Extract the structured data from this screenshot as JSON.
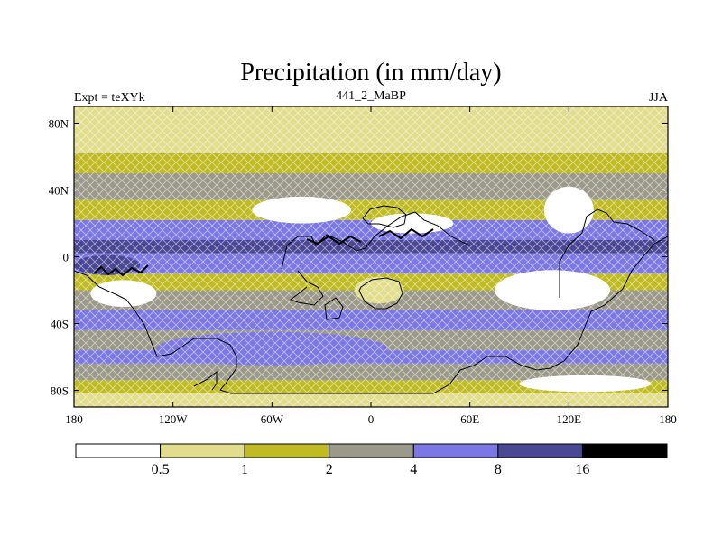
{
  "title": "Precipitation (in mm/day)",
  "left_label": "Expt = teXYk",
  "center_label": "441_2_MaBP",
  "right_label": "JJA",
  "chart_data": {
    "type": "heatmap",
    "title": "Precipitation (in mm/day)",
    "subtitle": "441_2_MaBP",
    "annotations": [
      "Expt = teXYk",
      "JJA"
    ],
    "units": "mm/day",
    "x_ticks": [
      "180",
      "120W",
      "60W",
      "0",
      "60E",
      "120E",
      "180"
    ],
    "y_ticks": [
      "80N",
      "40N",
      "0",
      "40S",
      "80S"
    ],
    "xlim": [
      -180,
      180
    ],
    "ylim": [
      -90,
      90
    ],
    "colorbar": {
      "levels": [
        "0.5",
        "1",
        "2",
        "4",
        "8",
        "16"
      ],
      "colors": [
        "#ffffff",
        "#e1dd8c",
        "#c0bb23",
        "#9b9a8a",
        "#7b78e6",
        "#4a4895",
        "#000000"
      ]
    },
    "zonal_bands": [
      {
        "lat_from": 90,
        "lat_to": 62,
        "color": "#e1dd8c"
      },
      {
        "lat_from": 62,
        "lat_to": 50,
        "color": "#c0bb23"
      },
      {
        "lat_from": 50,
        "lat_to": 34,
        "color": "#9b9a8a"
      },
      {
        "lat_from": 34,
        "lat_to": 22,
        "color": "#c0bb23"
      },
      {
        "lat_from": 22,
        "lat_to": 10,
        "color": "#7b78e6"
      },
      {
        "lat_from": 10,
        "lat_to": 2,
        "color": "#4a4895"
      },
      {
        "lat_from": 2,
        "lat_to": -10,
        "color": "#7b78e6"
      },
      {
        "lat_from": -10,
        "lat_to": -20,
        "color": "#c0bb23"
      },
      {
        "lat_from": -20,
        "lat_to": -32,
        "color": "#9b9a8a"
      },
      {
        "lat_from": -32,
        "lat_to": -44,
        "color": "#7b78e6"
      },
      {
        "lat_from": -44,
        "lat_to": -56,
        "color": "#9b9a8a"
      },
      {
        "lat_from": -56,
        "lat_to": -64,
        "color": "#7b78e6"
      },
      {
        "lat_from": -64,
        "lat_to": -74,
        "color": "#9b9a8a"
      },
      {
        "lat_from": -74,
        "lat_to": -82,
        "color": "#c0bb23"
      },
      {
        "lat_from": -82,
        "lat_to": -90,
        "color": "#e1dd8c"
      }
    ],
    "regions": [
      {
        "name": "dry-north-atlantic",
        "lon": -42,
        "lat": 28,
        "rlon": 30,
        "rlat": 8,
        "color": "#ffffff"
      },
      {
        "name": "dry-north-africa",
        "lon": 25,
        "lat": 20,
        "rlon": 25,
        "rlat": 6,
        "color": "#ffffff"
      },
      {
        "name": "dry-central-asia",
        "lon": 120,
        "lat": 28,
        "rlon": 15,
        "rlat": 14,
        "color": "#ffffff"
      },
      {
        "name": "dry-south-pacific",
        "lon": -150,
        "lat": -22,
        "rlon": 20,
        "rlat": 8,
        "color": "#ffffff"
      },
      {
        "name": "dry-indian-ocean",
        "lon": 110,
        "lat": -20,
        "rlon": 35,
        "rlat": 12,
        "color": "#ffffff"
      },
      {
        "name": "dry-south-atlantic",
        "lon": 5,
        "lat": -20,
        "rlon": 15,
        "rlat": 8,
        "color": "#e1dd8c"
      },
      {
        "name": "wet-southern-ocean",
        "lon": -60,
        "lat": -55,
        "rlon": 70,
        "rlat": 10,
        "color": "#7b78e6"
      },
      {
        "name": "dry-antarctic-coast",
        "lon": 130,
        "lat": -76,
        "rlon": 40,
        "rlat": 5,
        "color": "#ffffff"
      },
      {
        "name": "wet-pacific-tropics",
        "lon": -160,
        "lat": -5,
        "rlon": 20,
        "rlat": 6,
        "color": "#4a4895"
      }
    ]
  }
}
